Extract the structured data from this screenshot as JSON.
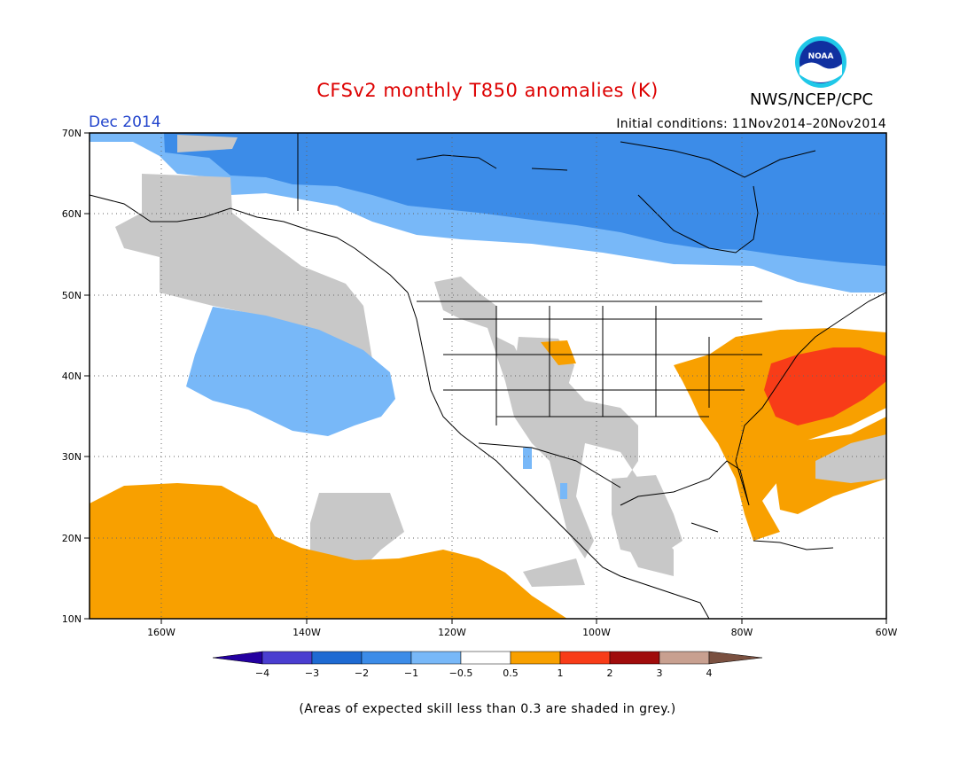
{
  "title": "CFSv2 monthly T850 anomalies (K)",
  "agency": "NWS/NCEP/CPC",
  "logo_text": "NOAA",
  "valid_month": "Dec 2014",
  "initial_conditions": "Initial conditions: 11Nov2014–20Nov2014",
  "footnote": "(Areas of expected skill less than 0.3 are shaded in grey.)",
  "colors": {
    "title": "#dd0000",
    "month": "#2244cc",
    "grey": "#c8c8c8",
    "blue_light": "#78b8f8",
    "blue_mid": "#3c8ce8",
    "orange": "#f8a000",
    "red_orange": "#f83c18",
    "land_line": "#000000"
  },
  "map": {
    "lon_range": [
      -170,
      -60
    ],
    "lat_range": [
      10,
      70
    ],
    "lat_ticks": [
      "10N",
      "20N",
      "30N",
      "40N",
      "50N",
      "60N",
      "70N"
    ],
    "lon_ticks": [
      "160W",
      "140W",
      "120W",
      "100W",
      "80W",
      "60W"
    ]
  },
  "legend": {
    "labels": [
      "−4",
      "−3",
      "−2",
      "−1",
      "−0.5",
      "0.5",
      "1",
      "2",
      "3",
      "4"
    ],
    "colors": [
      "#2400a0",
      "#4a3ed0",
      "#1e6ad2",
      "#3c8ce8",
      "#78b8f8",
      "#ffffff",
      "#f8a000",
      "#f83c18",
      "#a00c0c",
      "#c8a090",
      "#7a5040"
    ]
  }
}
